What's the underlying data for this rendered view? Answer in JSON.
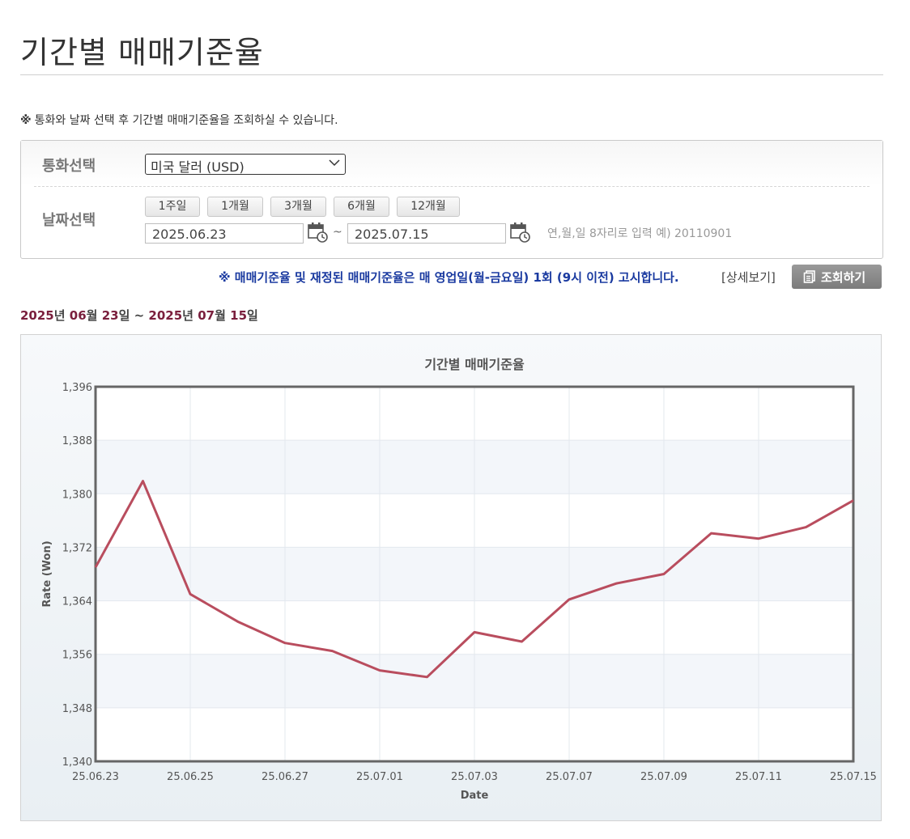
{
  "page": {
    "title": "기간별 매매기준율",
    "notice_mark": "※",
    "notice": "통화와 날짜 선택 후 기간별 매매기준율을 조회하실 수 있습니다."
  },
  "form": {
    "currency_label": "통화선택",
    "currency_value": "미국 달러 (USD)",
    "date_label": "날짜선택",
    "period_buttons": [
      "1주일",
      "1개월",
      "3개월",
      "6개월",
      "12개월"
    ],
    "start_date": "2025.06.23",
    "tilde": "~",
    "end_date": "2025.07.15",
    "hint": "연,월,일 8자리로 입력 예) 20110901"
  },
  "announce": "※ 매매기준율 및 재정된 매매기준율은 매 영업일(월-금요일) 1회 (9시 이전) 고시합니다.",
  "detail_link": "[상세보기]",
  "search_button": "조회하기",
  "range": {
    "start_year": "2025",
    "year_unit": "년",
    "start_month": "06",
    "month_unit": "월",
    "start_day": "23",
    "day_unit": "일",
    "sep": " ~ ",
    "end_year": "2025",
    "end_month": "07",
    "end_day": "15"
  },
  "colors": {
    "line": "#b94d5e",
    "range_number": "#7a1f3d",
    "announce": "#1a3aa0"
  },
  "chart_data": {
    "type": "line",
    "title": "기간별 매매기준율",
    "xlabel": "Date",
    "ylabel": "Rate (Won)",
    "ylim": [
      1340,
      1396
    ],
    "yticks": [
      "1,340",
      "1,348",
      "1,356",
      "1,364",
      "1,372",
      "1,380",
      "1,388",
      "1,396"
    ],
    "ytick_values": [
      1340,
      1348,
      1356,
      1364,
      1372,
      1380,
      1388,
      1396
    ],
    "xtick_labels": [
      "25.06.23",
      "25.06.25",
      "25.06.27",
      "25.07.01",
      "25.07.03",
      "25.07.07",
      "25.07.09",
      "25.07.11",
      "25.07.15"
    ],
    "grid": true,
    "series": [
      {
        "x": [
          "25.06.23",
          "25.06.24",
          "25.06.25",
          "25.06.26",
          "25.06.27",
          "25.06.30",
          "25.07.01",
          "25.07.02",
          "25.07.03",
          "25.07.04",
          "25.07.07",
          "25.07.08",
          "25.07.09",
          "25.07.10",
          "25.07.11",
          "25.07.14",
          "25.07.15"
        ],
        "values": [
          1369.0,
          1381.9,
          1365.0,
          1360.9,
          1357.7,
          1356.5,
          1353.6,
          1352.6,
          1359.3,
          1357.9,
          1364.2,
          1366.6,
          1368.0,
          1374.1,
          1373.3,
          1375.0,
          1379.0
        ]
      }
    ]
  }
}
